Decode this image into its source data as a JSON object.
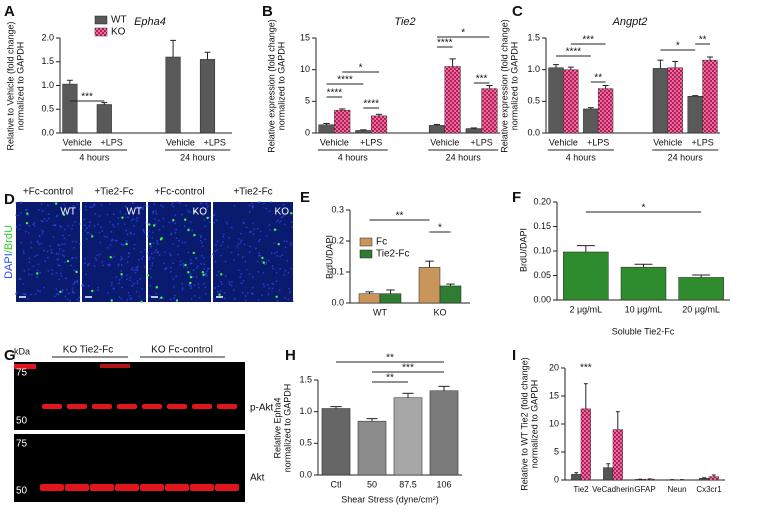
{
  "chart_data": [
    {
      "type": "bar",
      "panel": "A",
      "title": "Epha4",
      "ylabel": [
        "Relative to Vehicle (fold change)",
        "normalized to GAPDH"
      ],
      "categories": [
        "Vehicle",
        "+LPS",
        "Vehicle",
        "+LPS"
      ],
      "groups": [
        "4 hours",
        "24 hours"
      ],
      "series": [
        {
          "name": "WT",
          "color": "#595959",
          "values": [
            1.03,
            0.6,
            1.6,
            1.55
          ],
          "errors": [
            0.08,
            0.04,
            0.35,
            0.15
          ]
        },
        {
          "name": "KO",
          "color": "#c2185b",
          "pattern": "checkered",
          "values": [
            0,
            0,
            0,
            0
          ]
        }
      ],
      "ylim": [
        0,
        2
      ],
      "yticks": [
        {
          "value": 0,
          "label": "0.0"
        },
        0.5,
        {
          "value": 1,
          "label": "1.0"
        },
        1.5,
        {
          "value": 2,
          "label": "2.0"
        }
      ],
      "legend": "top-left",
      "annotations": [
        "***"
      ]
    },
    {
      "type": "bar",
      "panel": "B",
      "title": "Tie2",
      "ylabel": [
        "Relative expression (fold change)",
        "normalized to GAPDH"
      ],
      "categories": [
        "Vehicle",
        "+LPS",
        "Vehicle",
        "+LPS"
      ],
      "groups": [
        "4 hours",
        "24 hours"
      ],
      "series": [
        {
          "color": "#595959",
          "values": [
            1.3,
            0.4,
            1.2,
            0.7
          ],
          "errors": [
            0.2,
            0.1,
            0.15,
            0.1
          ]
        },
        {
          "color": "#c2185b",
          "pattern": "checkered",
          "values": [
            3.6,
            2.7,
            10.5,
            7.0
          ],
          "errors": [
            0.2,
            0.25,
            1.2,
            0.5
          ]
        }
      ],
      "ylim": [
        0,
        15
      ],
      "yticks": [
        0,
        5,
        10,
        15
      ],
      "annotations": [
        "****",
        "****",
        "*",
        "****",
        "****",
        "*",
        "***"
      ]
    },
    {
      "type": "bar",
      "panel": "C",
      "title": "Angpt2",
      "ylabel": [
        "Relative expression (fold change)",
        "normalized to GAPDH"
      ],
      "categories": [
        "Vehicle",
        "+LPS",
        "Vehicle",
        "+LPS"
      ],
      "groups": [
        "4 hours",
        "24 hours"
      ],
      "series": [
        {
          "color": "#595959",
          "values": [
            1.03,
            0.38,
            1.02,
            0.58
          ],
          "errors": [
            0.05,
            0.02,
            0.13,
            0.01
          ]
        },
        {
          "color": "#c2185b",
          "pattern": "checkered",
          "values": [
            1.0,
            0.7,
            1.03,
            1.15
          ],
          "errors": [
            0.04,
            0.05,
            0.1,
            0.05
          ]
        }
      ],
      "ylim": [
        0,
        1.5
      ],
      "yticks": [
        {
          "value": 0,
          "label": "0.0"
        },
        0.5,
        {
          "value": 1,
          "label": "1.0"
        },
        1.5
      ],
      "annotations": [
        "****",
        "***",
        "**",
        "*",
        "**"
      ]
    },
    {
      "type": "bar",
      "panel": "E",
      "ylabel": [
        "BrdU/DAPI"
      ],
      "categories": [
        "WT",
        "KO"
      ],
      "series": [
        {
          "name": "Fc",
          "color": "#c8955a",
          "values": [
            0.03,
            0.115
          ],
          "errors": [
            0.006,
            0.02
          ]
        },
        {
          "name": "Tie2-Fc",
          "color": "#2e7d32",
          "values": [
            0.03,
            0.055
          ],
          "errors": [
            0.012,
            0.006
          ]
        }
      ],
      "ylim": [
        0,
        0.3
      ],
      "yticks": [
        {
          "value": 0,
          "label": "0.0"
        },
        0.1,
        0.2,
        0.3
      ],
      "legend": "top-left",
      "annotations": [
        "**",
        "*"
      ]
    },
    {
      "type": "bar",
      "panel": "F",
      "ylabel": [
        "BrdU/DAPI"
      ],
      "categories": [
        "2 μg/mL",
        "10 μg/mL",
        "20 μg/mL"
      ],
      "xlabel": "Soluble Tie2-Fc",
      "series": [
        {
          "color": "#2e8b2e",
          "values": [
            0.098,
            0.067,
            0.046
          ],
          "errors": [
            0.013,
            0.006,
            0.005
          ]
        }
      ],
      "ylim": [
        0,
        0.2
      ],
      "yticks": [
        {
          "value": 0,
          "label": "0.00"
        },
        0.05,
        {
          "value": 0.1,
          "label": "0.10"
        },
        0.15,
        {
          "value": 0.2,
          "label": "0.20"
        }
      ],
      "annotations": [
        "*"
      ]
    },
    {
      "type": "bar",
      "panel": "H",
      "ylabel": [
        "Relative Epha4",
        "normalized to GAPDH"
      ],
      "categories": [
        "Ctl",
        "50",
        "87.5",
        "106"
      ],
      "xlabel": "Shear Stress (dyne/cm²)",
      "series": [
        {
          "colors": [
            "#666666",
            "#8c8c8c",
            "#a6a6a6",
            "#7a7a7a"
          ],
          "values": [
            1.05,
            0.85,
            1.22,
            1.33
          ],
          "errors": [
            0.03,
            0.04,
            0.07,
            0.07
          ]
        }
      ],
      "ylim": [
        0,
        1.5
      ],
      "yticks": [
        {
          "value": 0,
          "label": "0.0"
        },
        0.5,
        {
          "value": 1,
          "label": "1.0"
        },
        1.5
      ],
      "annotations": [
        "**",
        "***",
        "**"
      ]
    },
    {
      "type": "bar",
      "panel": "I",
      "ylabel": [
        "Relative to WT Tie2 (fold change)",
        "normalized to GAPDH"
      ],
      "categories": [
        "Tie2",
        "VeCadherin",
        "GFAP",
        "Neun",
        "Cx3cr1"
      ],
      "series": [
        {
          "color": "#555555",
          "values": [
            1.0,
            2.2,
            0.1,
            0.05,
            0.3
          ],
          "errors": [
            0.3,
            0.7,
            0.05,
            0.02,
            0.1
          ]
        },
        {
          "color": "#c2185b",
          "pattern": "checkered",
          "values": [
            12.7,
            9.0,
            0.15,
            0.05,
            0.6
          ],
          "errors": [
            4.5,
            3.2,
            0.05,
            0.02,
            0.3
          ]
        }
      ],
      "ylim": [
        0,
        20
      ],
      "yticks": [
        0,
        5,
        10,
        15,
        20
      ],
      "annotations": [
        "***"
      ]
    }
  ],
  "image_panels": {
    "D": {
      "panel": "D",
      "channel_labels": [
        "DAPI",
        "/BrdU"
      ],
      "columns": [
        {
          "treatment": "+Fc-control",
          "genotype": "WT"
        },
        {
          "treatment": "+Tie2-Fc",
          "genotype": "WT"
        },
        {
          "treatment": "+Fc-control",
          "genotype": "KO"
        },
        {
          "treatment": "+Tie2-Fc",
          "genotype": "KO"
        }
      ]
    },
    "G": {
      "panel": "G",
      "unit": "kDa",
      "markers": [
        "75",
        "50",
        "75",
        "50"
      ],
      "groups": [
        "KO Tie2-Fc",
        "KO Fc-control"
      ],
      "bands": [
        "p-Akt",
        "Akt"
      ]
    }
  }
}
